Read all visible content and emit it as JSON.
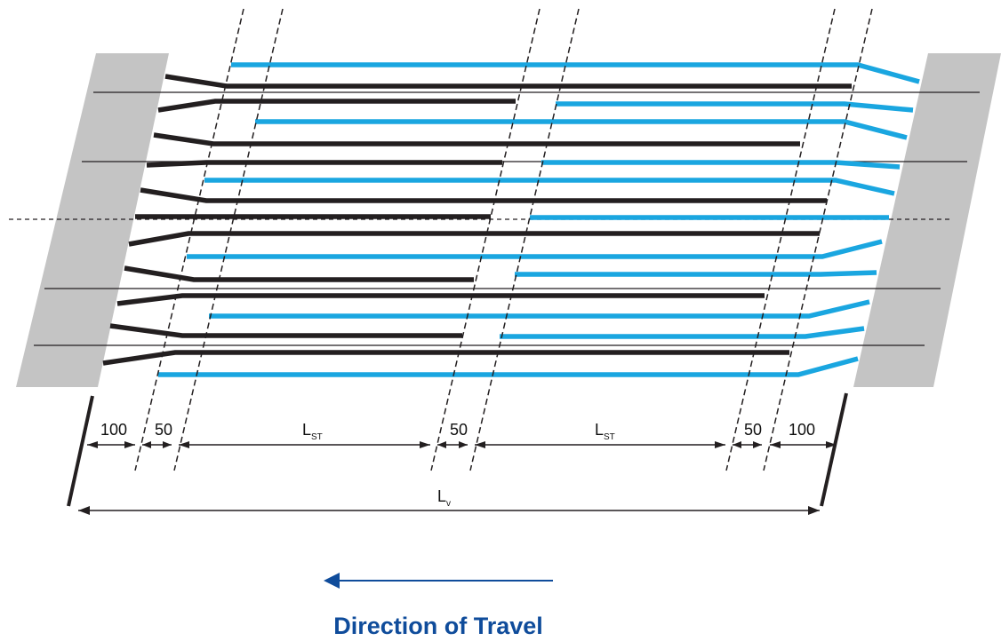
{
  "colors": {
    "abutment": "#c4c4c4",
    "black_bar": "#231f20",
    "blue_bar": "#1aa6e0",
    "arrow": "#0f4c9b",
    "label": "#0f4c9b"
  },
  "dimensions": {
    "left_end": "100",
    "left_lap": "50",
    "span1_main": "L",
    "span1_sub": "ST",
    "mid_lap": "50",
    "span2_main": "L",
    "span2_sub": "ST",
    "right_lap": "50",
    "right_end": "100",
    "total_main": "L",
    "total_sub": "v"
  },
  "direction": {
    "label": "Direction of Travel",
    "arrow_icon": "arrow-left-icon"
  }
}
